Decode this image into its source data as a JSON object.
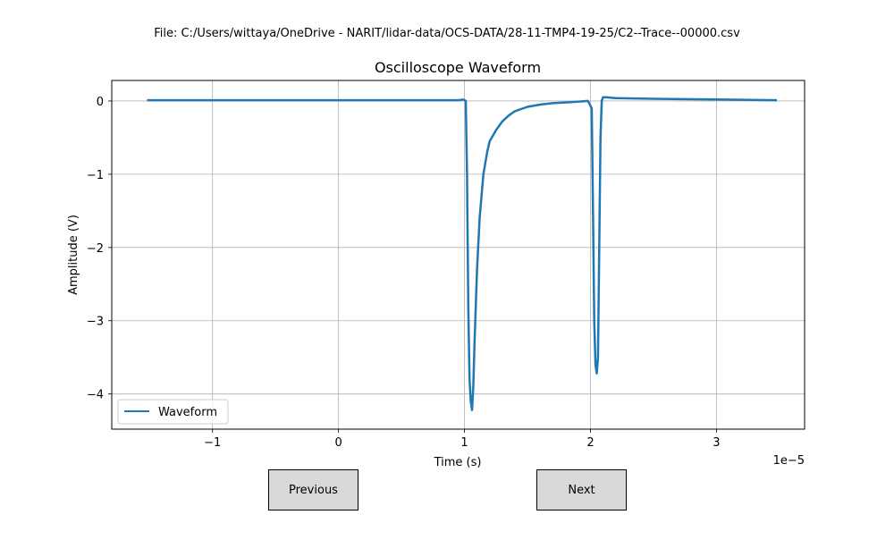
{
  "file_label": "File: C:/Users/wittaya/OneDrive - NARIT/lidar-data/OCS-DATA/28-11-TMP4-19-25/C2--Trace--00000.csv",
  "buttons": {
    "previous": "Previous",
    "next": "Next"
  },
  "colors": {
    "series": "#1f77b4",
    "grid": "#b0b0b0",
    "button_bg": "#d9d9d9"
  },
  "chart_data": {
    "type": "line",
    "title": "Oscilloscope Waveform",
    "xlabel": "Time (s)",
    "ylabel": "Amplitude (V)",
    "x_offset_text": "1e−5",
    "xlim": [
      -1.8e-05,
      3.7e-05
    ],
    "ylim": [
      -4.48,
      0.28
    ],
    "xticks": [
      {
        "value": -1e-05,
        "label": "−1"
      },
      {
        "value": 0,
        "label": "0"
      },
      {
        "value": 1e-05,
        "label": "1"
      },
      {
        "value": 2e-05,
        "label": "2"
      },
      {
        "value": 3e-05,
        "label": "3"
      }
    ],
    "yticks": [
      {
        "value": 0,
        "label": "0"
      },
      {
        "value": -1,
        "label": "−1"
      },
      {
        "value": -2,
        "label": "−2"
      },
      {
        "value": -3,
        "label": "−3"
      },
      {
        "value": -4,
        "label": "−4"
      }
    ],
    "grid": true,
    "legend_position": "lower-left",
    "series": [
      {
        "name": "Waveform",
        "x": [
          -1.52e-05,
          -1e-05,
          -5e-06,
          0,
          5e-06,
          9.5e-06,
          9.9e-06,
          1.01e-05,
          1.02e-05,
          1.03e-05,
          1.04e-05,
          1.05e-05,
          1.06e-05,
          1.07e-05,
          1.08e-05,
          1.1e-05,
          1.12e-05,
          1.15e-05,
          1.18e-05,
          1.2e-05,
          1.25e-05,
          1.3e-05,
          1.35e-05,
          1.4e-05,
          1.5e-05,
          1.6e-05,
          1.7e-05,
          1.8e-05,
          1.9e-05,
          1.98e-05,
          2.01e-05,
          2.02e-05,
          2.03e-05,
          2.04e-05,
          2.05e-05,
          2.06e-05,
          2.07e-05,
          2.08e-05,
          2.09e-05,
          2.1e-05,
          2.12e-05,
          2.2e-05,
          2.5e-05,
          3e-05,
          3.48e-05
        ],
        "y": [
          0.01,
          0.01,
          0.01,
          0.01,
          0.01,
          0.01,
          0.02,
          0.0,
          -1.0,
          -2.8,
          -3.8,
          -4.1,
          -4.22,
          -3.9,
          -3.3,
          -2.3,
          -1.6,
          -1.0,
          -0.7,
          -0.55,
          -0.4,
          -0.28,
          -0.2,
          -0.14,
          -0.08,
          -0.05,
          -0.03,
          -0.02,
          -0.01,
          0.0,
          -0.1,
          -1.5,
          -3.0,
          -3.6,
          -3.72,
          -3.5,
          -2.0,
          -0.5,
          0.0,
          0.05,
          0.05,
          0.04,
          0.03,
          0.02,
          0.01
        ]
      }
    ]
  }
}
